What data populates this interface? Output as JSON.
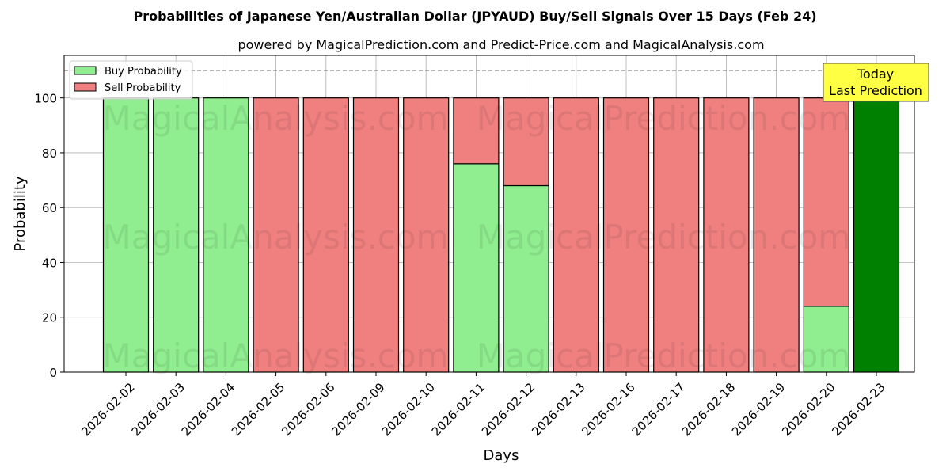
{
  "chart_data": {
    "type": "bar",
    "stacked": true,
    "title": "Probabilities of Japanese Yen/Australian Dollar (JPYAUD) Buy/Sell Signals Over 15 Days (Feb 24)",
    "subtitle": "powered by MagicalPrediction.com and Predict-Price.com and MagicalAnalysis.com",
    "xlabel": "Days",
    "ylabel": "Probability",
    "ylim": [
      0,
      115.5
    ],
    "yticks": [
      0,
      20,
      40,
      60,
      80,
      100
    ],
    "reference_line": 110,
    "grid": true,
    "legend_position": "top-left",
    "categories": [
      "2026-02-02",
      "2026-02-03",
      "2026-02-04",
      "2026-02-05",
      "2026-02-06",
      "2026-02-09",
      "2026-02-10",
      "2026-02-11",
      "2026-02-12",
      "2026-02-13",
      "2026-02-16",
      "2026-02-17",
      "2026-02-18",
      "2026-02-19",
      "2026-02-20",
      "2026-02-23"
    ],
    "series": [
      {
        "name": "Buy Probability",
        "color": "#90ee90",
        "values": [
          100,
          100,
          100,
          0,
          0,
          0,
          0,
          76,
          68,
          0,
          0,
          0,
          0,
          0,
          24,
          100
        ]
      },
      {
        "name": "Sell Probability",
        "color": "#f08080",
        "values": [
          0,
          0,
          0,
          100,
          100,
          100,
          100,
          24,
          32,
          100,
          100,
          100,
          100,
          100,
          76,
          0
        ]
      }
    ],
    "today_color": "#008000",
    "annotation": {
      "line1": "Today",
      "line2": "Last Prediction",
      "color": "#ffff44"
    },
    "watermarks": [
      "MagicalAnalysis.com",
      "MagicalPrediction.com"
    ]
  }
}
